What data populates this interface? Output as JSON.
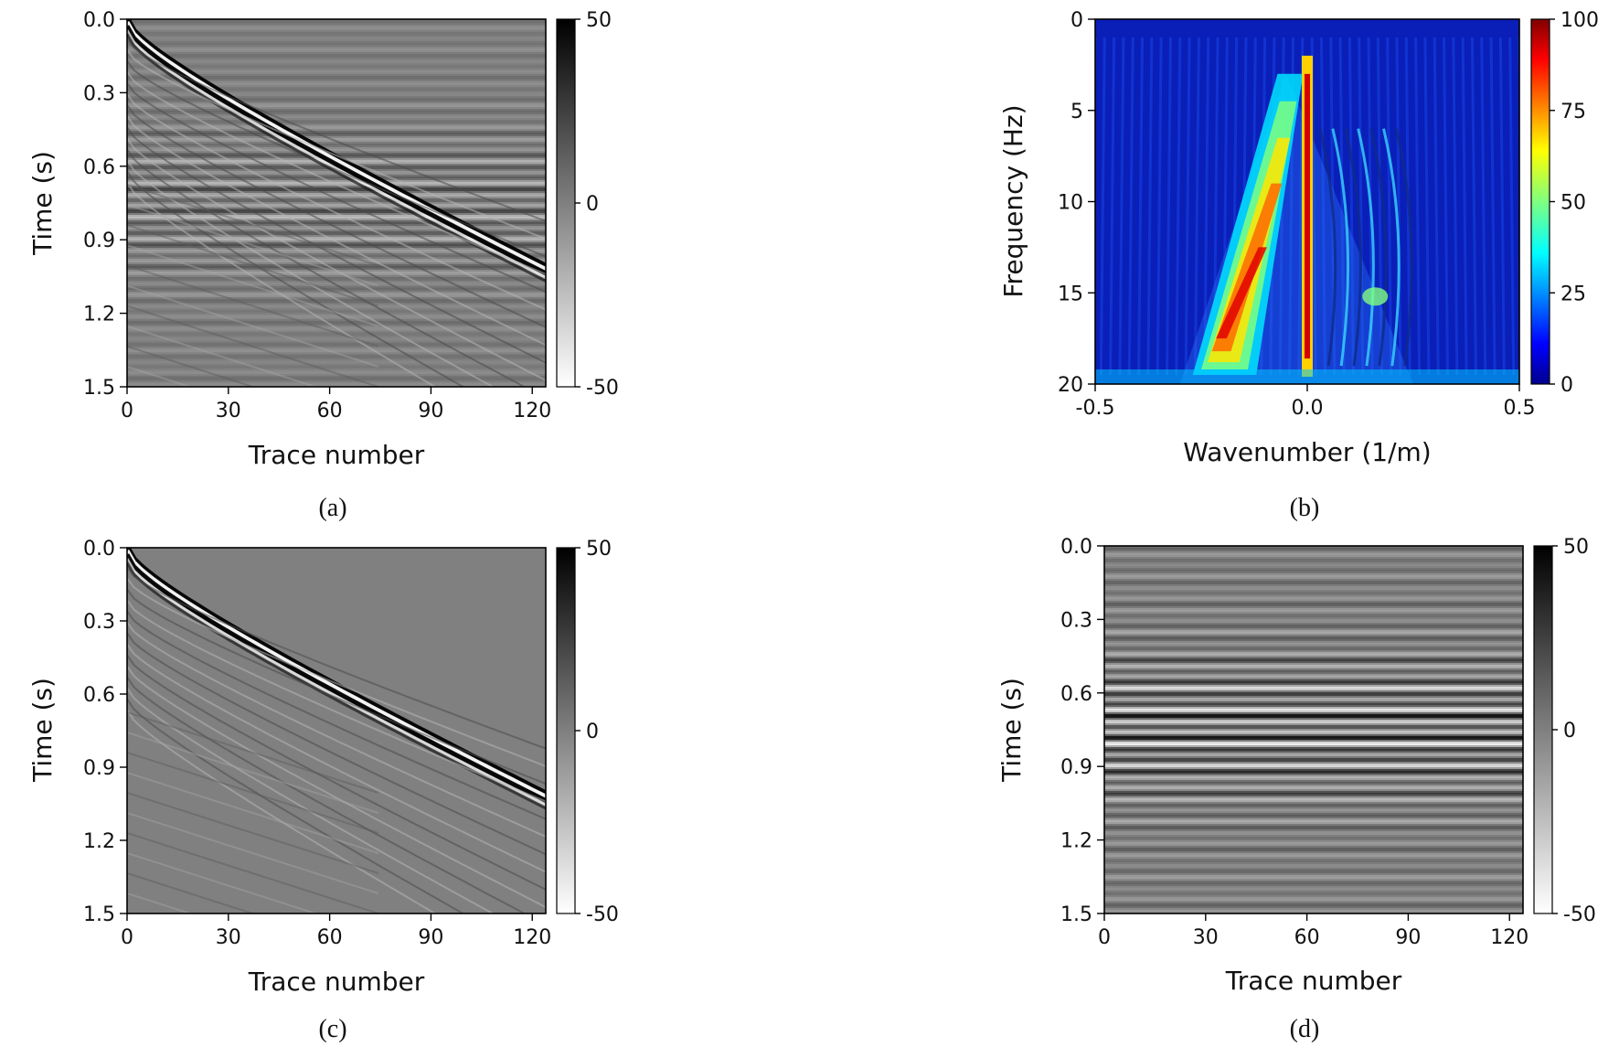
{
  "chart_data": [
    {
      "id": "a",
      "type": "heatmap",
      "caption": "(a)",
      "title": "",
      "xlabel": "Trace number",
      "ylabel": "Time (s)",
      "xlim": [
        0,
        124
      ],
      "ylim": [
        0.0,
        1.5
      ],
      "y_inverted": true,
      "xticks": [
        "0",
        "30",
        "60",
        "90",
        "120"
      ],
      "yticks": [
        "0.0",
        "0.3",
        "0.6",
        "0.9",
        "1.2",
        "1.5"
      ],
      "colorbar": {
        "cmap": "gray_r",
        "vmin": -50,
        "vmax": 50,
        "ticks": [
          "50",
          "0",
          "-50"
        ]
      },
      "content": "dipping direct-wave events plus horizontal linear noise bands"
    },
    {
      "id": "b",
      "type": "heatmap",
      "caption": "(b)",
      "title": "",
      "xlabel": "Wavenumber (1/m)",
      "ylabel": "Frequency (Hz)",
      "xlim": [
        -0.5,
        0.5
      ],
      "ylim": [
        0,
        20
      ],
      "y_inverted": true,
      "xticks": [
        "-0.5",
        "0.0",
        "0.5"
      ],
      "yticks": [
        "0",
        "5",
        "10",
        "15",
        "20"
      ],
      "colorbar": {
        "cmap": "jet",
        "vmin": 0,
        "vmax": 100,
        "ticks": [
          "100",
          "75",
          "50",
          "25",
          "0"
        ]
      },
      "content": "f-k amplitude spectrum with strong energy on negative wavenumbers and at k=0"
    },
    {
      "id": "c",
      "type": "heatmap",
      "caption": "(c)",
      "title": "",
      "xlabel": "Trace number",
      "ylabel": "Time (s)",
      "xlim": [
        0,
        124
      ],
      "ylim": [
        0.0,
        1.5
      ],
      "y_inverted": true,
      "xticks": [
        "0",
        "30",
        "60",
        "90",
        "120"
      ],
      "yticks": [
        "0.0",
        "0.3",
        "0.6",
        "0.9",
        "1.2",
        "1.5"
      ],
      "colorbar": {
        "cmap": "gray_r",
        "vmin": -50,
        "vmax": 50,
        "ticks": [
          "50",
          "0",
          "-50"
        ]
      },
      "content": "dipping events after removal of horizontal noise"
    },
    {
      "id": "d",
      "type": "heatmap",
      "caption": "(d)",
      "title": "",
      "xlabel": "Trace number",
      "ylabel": "Time (s)",
      "xlim": [
        0,
        124
      ],
      "ylim": [
        0.0,
        1.5
      ],
      "y_inverted": true,
      "xticks": [
        "0",
        "30",
        "60",
        "90",
        "120"
      ],
      "yticks": [
        "0.0",
        "0.3",
        "0.6",
        "0.9",
        "1.2",
        "1.5"
      ],
      "colorbar": {
        "cmap": "gray_r",
        "vmin": -50,
        "vmax": 50,
        "ticks": [
          "50",
          "0",
          "-50"
        ]
      },
      "content": "horizontal linear noise only"
    }
  ]
}
